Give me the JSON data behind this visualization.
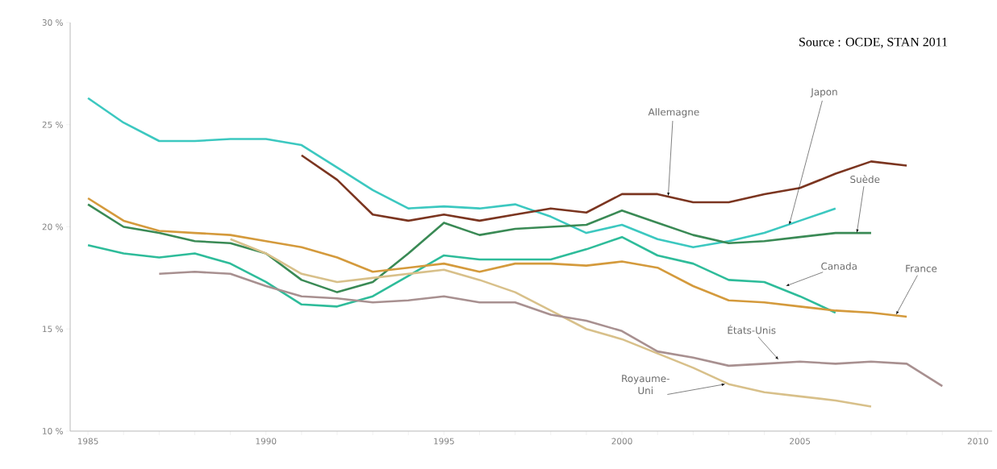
{
  "chart_data": {
    "type": "line",
    "xlim": [
      1984.5,
      2010.4
    ],
    "ylim": [
      10,
      30
    ],
    "xticks": [
      1985,
      {
        "value": 1986,
        "label": null
      },
      {
        "value": 1987,
        "label": null
      },
      {
        "value": 1988,
        "label": null
      },
      {
        "value": 1989,
        "label": null
      },
      1990,
      {
        "value": 1991,
        "label": null
      },
      {
        "value": 1992,
        "label": null
      },
      {
        "value": 1993,
        "label": null
      },
      {
        "value": 1994,
        "label": null
      },
      1995,
      {
        "value": 1996,
        "label": null
      },
      {
        "value": 1997,
        "label": null
      },
      {
        "value": 1998,
        "label": null
      },
      {
        "value": 1999,
        "label": null
      },
      2000,
      {
        "value": 2001,
        "label": null
      },
      {
        "value": 2002,
        "label": null
      },
      {
        "value": 2003,
        "label": null
      },
      {
        "value": 2004,
        "label": null
      },
      2005,
      {
        "value": 2006,
        "label": null
      },
      {
        "value": 2007,
        "label": null
      },
      {
        "value": 2008,
        "label": null
      },
      {
        "value": 2009,
        "label": null
      },
      2010
    ],
    "yticks": [
      {
        "value": 10,
        "label": "10 %"
      },
      {
        "value": 15,
        "label": "15 %"
      },
      {
        "value": 20,
        "label": "20 %"
      },
      {
        "value": 25,
        "label": "25 %"
      },
      {
        "value": 30,
        "label": "30 %"
      }
    ],
    "grid": false,
    "marker": "none",
    "line_style": "solid",
    "series": [
      {
        "color": "#3cc8c0",
        "x": [
          1985,
          1986,
          1987,
          1988,
          1989,
          1990,
          1991,
          1992,
          1993,
          1994,
          1995,
          1996,
          1997,
          1998,
          1999,
          2000,
          2001,
          2002,
          2003,
          2004,
          2005,
          2006
        ],
        "values": [
          26.3,
          25.1,
          24.2,
          24.2,
          24.3,
          24.3,
          24.0,
          22.9,
          21.8,
          20.9,
          21.0,
          20.9,
          21.1,
          20.5,
          19.7,
          20.1,
          19.4,
          19.0,
          19.3,
          19.7,
          20.3,
          20.9
        ]
      },
      {
        "color": "#7b3520",
        "x": [
          1991,
          1992,
          1993,
          1994,
          1995,
          1996,
          1997,
          1998,
          1999,
          2000,
          2001,
          2002,
          2003,
          2004,
          2005,
          2006,
          2007,
          2008
        ],
        "values": [
          23.5,
          22.3,
          20.6,
          20.3,
          20.6,
          20.3,
          20.6,
          20.9,
          20.7,
          21.6,
          21.6,
          21.2,
          21.2,
          21.6,
          21.9,
          22.6,
          23.2,
          23.0
        ]
      },
      {
        "color": "#3a8a55",
        "x": [
          1985,
          1986,
          1987,
          1988,
          1989,
          1990,
          1991,
          1992,
          1993,
          1994,
          1995,
          1996,
          1997,
          1998,
          1999,
          2000,
          2001,
          2002,
          2003,
          2004,
          2005,
          2006,
          2007
        ],
        "values": [
          21.1,
          20.0,
          19.7,
          19.3,
          19.2,
          18.7,
          17.4,
          16.8,
          17.3,
          18.7,
          20.2,
          19.6,
          19.9,
          20.0,
          20.1,
          20.8,
          20.2,
          19.6,
          19.2,
          19.3,
          19.5,
          19.7,
          19.7
        ]
      },
      {
        "color": "#2ebc9a",
        "x": [
          1985,
          1986,
          1987,
          1988,
          1989,
          1990,
          1991,
          1992,
          1993,
          1994,
          1995,
          1996,
          1997,
          1998,
          1999,
          2000,
          2001,
          2002,
          2003,
          2004,
          2005,
          2006
        ],
        "values": [
          19.1,
          18.7,
          18.5,
          18.7,
          18.2,
          17.3,
          16.2,
          16.1,
          16.6,
          17.6,
          18.6,
          18.4,
          18.4,
          18.4,
          18.9,
          19.5,
          18.6,
          18.2,
          17.4,
          17.3,
          16.6,
          15.8
        ]
      },
      {
        "color": "#d49a3c",
        "x": [
          1985,
          1986,
          1987,
          1988,
          1989,
          1990,
          1991,
          1992,
          1993,
          1994,
          1995,
          1996,
          1997,
          1998,
          1999,
          2000,
          2001,
          2002,
          2003,
          2004,
          2005,
          2006,
          2007,
          2008
        ],
        "values": [
          21.4,
          20.3,
          19.8,
          19.7,
          19.6,
          19.3,
          19.0,
          18.5,
          17.8,
          18.0,
          18.2,
          17.8,
          18.2,
          18.2,
          18.1,
          18.3,
          18.0,
          17.1,
          16.4,
          16.3,
          16.1,
          15.9,
          15.8,
          15.6
        ]
      },
      {
        "color": "#d8c08a",
        "x": [
          1989,
          1990,
          1991,
          1992,
          1993,
          1994,
          1995,
          1996,
          1997,
          1998,
          1999,
          2000,
          2001,
          2002,
          2003,
          2004,
          2005,
          2006,
          2007
        ],
        "values": [
          19.4,
          18.7,
          17.7,
          17.3,
          17.5,
          17.7,
          17.9,
          17.4,
          16.8,
          15.9,
          15.0,
          14.5,
          13.8,
          13.1,
          12.3,
          11.9,
          11.7,
          11.5,
          11.2
        ]
      },
      {
        "color": "#a89090",
        "x": [
          1987,
          1988,
          1989,
          1990,
          1991,
          1992,
          1993,
          1994,
          1995,
          1996,
          1997,
          1998,
          1999,
          2000,
          2001,
          2002,
          2003,
          2004,
          2005,
          2006,
          2007,
          2008,
          2009
        ],
        "values": [
          17.7,
          17.8,
          17.7,
          17.1,
          16.6,
          16.5,
          16.3,
          16.4,
          16.6,
          16.3,
          16.3,
          15.7,
          15.4,
          14.9,
          13.9,
          13.6,
          13.2,
          13.3,
          13.4,
          13.3,
          13.4,
          13.3,
          12.2
        ]
      }
    ],
    "annotations": [
      "Source : OCDE, STAN 2011",
      {
        "text": "Allemagne",
        "x": 2001.3,
        "y": 21.5
      },
      {
        "text": "Japon",
        "x": 2004.7,
        "y": 20.1
      },
      {
        "text": "Suède",
        "x": 2006.6,
        "y": 19.7
      },
      {
        "text": "Canada",
        "x": 2004.6,
        "y": 17.1
      },
      {
        "text": "France",
        "x": 2007.7,
        "y": 15.7
      },
      {
        "text": "États-Unis",
        "x": 2004.4,
        "y": 13.5
      },
      {
        "text": "Royaume-Uni",
        "x": 2002.9,
        "y": 12.3
      }
    ]
  }
}
